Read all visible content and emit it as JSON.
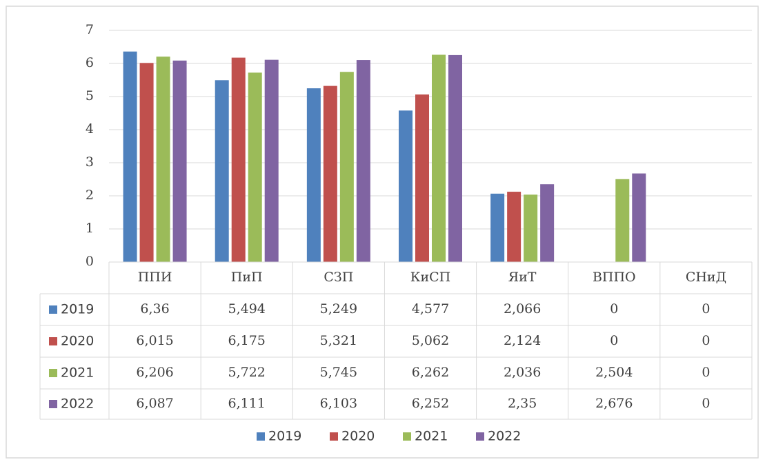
{
  "chart_data": {
    "type": "bar",
    "categories": [
      "ППИ",
      "ПиП",
      "СЗП",
      "КиСП",
      "ЯиТ",
      "ВППО",
      "СНиД"
    ],
    "series": [
      {
        "name": "2019",
        "color": "#4f81bd",
        "values": [
          6.36,
          5.494,
          5.249,
          4.577,
          2.066,
          0,
          0
        ],
        "value_labels": [
          "6,36",
          "5,494",
          "5,249",
          "4,577",
          "2,066",
          "0",
          "0"
        ]
      },
      {
        "name": "2020",
        "color": "#c0504d",
        "values": [
          6.015,
          6.175,
          5.321,
          5.062,
          2.124,
          0,
          0
        ],
        "value_labels": [
          "6,015",
          "6,175",
          "5,321",
          "5,062",
          "2,124",
          "0",
          "0"
        ]
      },
      {
        "name": "2021",
        "color": "#9bbb59",
        "values": [
          6.206,
          5.722,
          5.745,
          6.262,
          2.036,
          2.504,
          0
        ],
        "value_labels": [
          "6,206",
          "5,722",
          "5,745",
          "6,262",
          "2,036",
          "2,504",
          "0"
        ]
      },
      {
        "name": "2022",
        "color": "#8064a2",
        "values": [
          6.087,
          6.111,
          6.103,
          6.252,
          2.35,
          2.676,
          0
        ],
        "value_labels": [
          "6,087",
          "6,111",
          "6,103",
          "6,252",
          "2,35",
          "2,676",
          "0"
        ]
      }
    ],
    "ylim": [
      0,
      7
    ],
    "yticks": [
      0,
      1,
      2,
      3,
      4,
      5,
      6,
      7
    ],
    "grid": true,
    "legend": "bottom"
  }
}
